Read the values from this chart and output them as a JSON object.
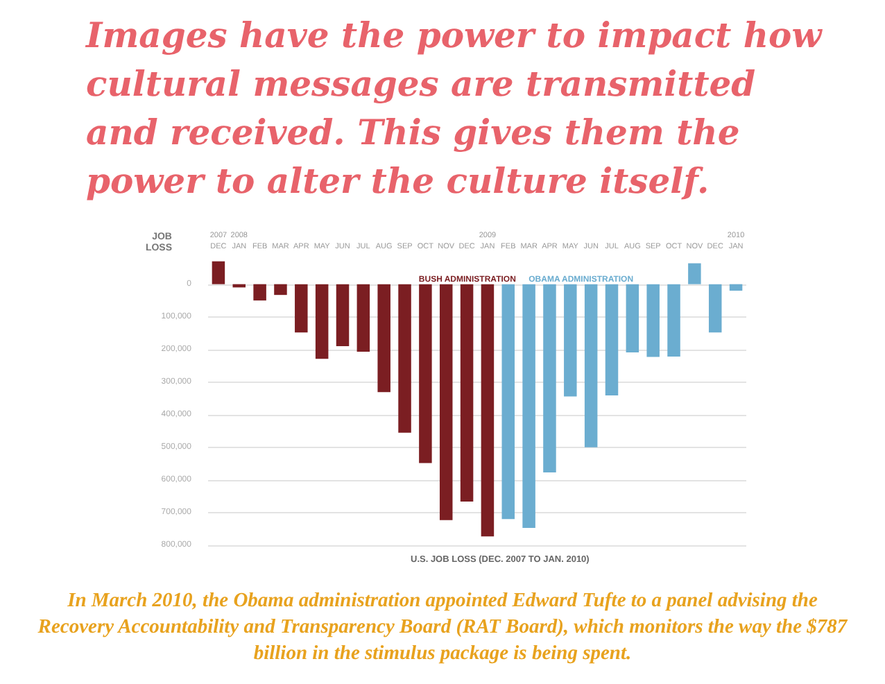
{
  "chart_data": {
    "type": "bar",
    "title": "Images have the power to impact how\ncultural messages are transmitted\nand received. This gives them the\npower to alter the culture itself.",
    "ylabel": "JOB\nLOSS",
    "xlabel": "U.S. JOB LOSS (DEC. 2007 TO JAN. 2010)",
    "annotations": [
      "In March 2010, the Obama administration appointed Edward Tufte to a panel advising the Recovery Accountability and Transparency Board (RAT Board), which monitors the way the $787 billion in the stimulus package is being spent."
    ],
    "categories": [
      "2007\nDEC",
      "2008\nJAN",
      "FEB",
      "MAR",
      "APR",
      "MAY",
      "JUN",
      "JUL",
      "AUG",
      "SEP",
      "OCT",
      "NOV",
      "DEC",
      "2009\nJAN",
      "FEB",
      "MAR",
      "APR",
      "MAY",
      "JUN",
      "JUL",
      "AUG",
      "SEP",
      "OCT",
      "NOV",
      "DEC",
      "2010\nJAN"
    ],
    "series": [
      {
        "name": "BUSH ADMINISTRATION",
        "color": "#7b1e22",
        "values": [
          -70000,
          10000,
          50000,
          33000,
          148000,
          229000,
          190000,
          207000,
          331000,
          455000,
          548000,
          723000,
          666000,
          773000,
          null,
          null,
          null,
          null,
          null,
          null,
          null,
          null,
          null,
          null,
          null,
          null
        ]
      },
      {
        "name": "OBAMA ADMINISTRATION",
        "color": "#6badd0",
        "values": [
          null,
          null,
          null,
          null,
          null,
          null,
          null,
          null,
          null,
          null,
          null,
          null,
          null,
          null,
          720000,
          747000,
          577000,
          344000,
          500000,
          341000,
          209000,
          223000,
          222000,
          -64000,
          148000,
          20000
        ]
      }
    ],
    "ylim": [
      800000,
      -80000
    ],
    "yticks": [
      0,
      {
        "value": 100000,
        "label": "100,000"
      },
      {
        "value": 200000,
        "label": "200,000"
      },
      {
        "value": 300000,
        "label": "300,000"
      },
      {
        "value": 400000,
        "label": "400,000"
      },
      {
        "value": 500000,
        "label": "500,000"
      },
      {
        "value": 600000,
        "label": "600,000"
      },
      {
        "value": 700000,
        "label": "700,000"
      },
      {
        "value": 800000,
        "label": "800,000"
      }
    ],
    "grid": "y",
    "legend": "top right"
  }
}
